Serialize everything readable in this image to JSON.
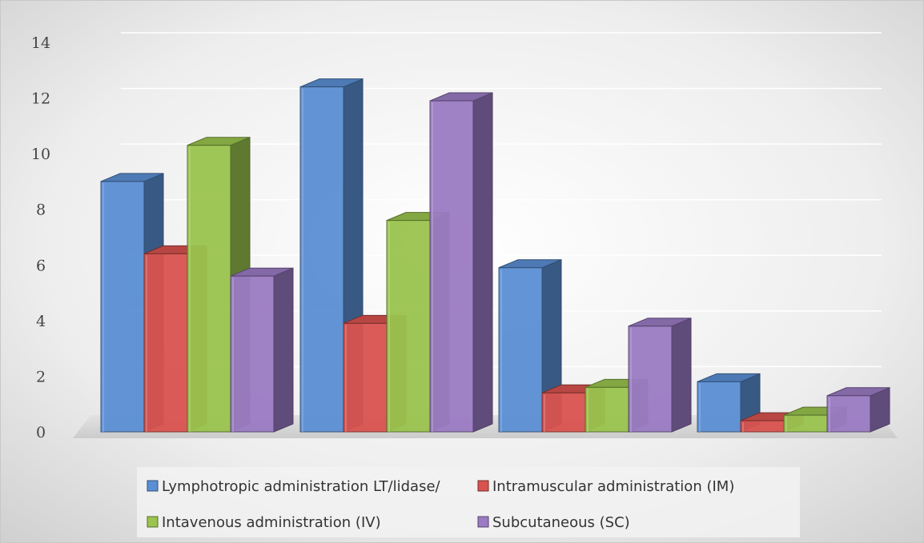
{
  "chart_data": {
    "type": "bar",
    "title": "",
    "xlabel": "",
    "ylabel": "",
    "ylim": [
      0,
      14
    ],
    "yticks": [
      0,
      2,
      4,
      6,
      8,
      10,
      12,
      14
    ],
    "categories": [
      "",
      "",
      "",
      ""
    ],
    "grid": true,
    "legend_position": "bottom",
    "series": [
      {
        "name": "Lymphotropic administration LT/lidase/",
        "color": "#5b8fd4",
        "values": [
          9.0,
          12.4,
          5.9,
          1.8
        ]
      },
      {
        "name": "Intramuscular administration (IM)",
        "color": "#d9534f",
        "values": [
          6.4,
          3.9,
          1.4,
          0.4
        ]
      },
      {
        "name": "Intavenous administration (IV)",
        "color": "#9ac44e",
        "values": [
          10.3,
          7.6,
          1.6,
          0.6
        ]
      },
      {
        "name": "Subcutaneous (SC)",
        "color": "#9b7bc4",
        "values": [
          5.6,
          11.9,
          3.8,
          1.3
        ]
      }
    ]
  }
}
